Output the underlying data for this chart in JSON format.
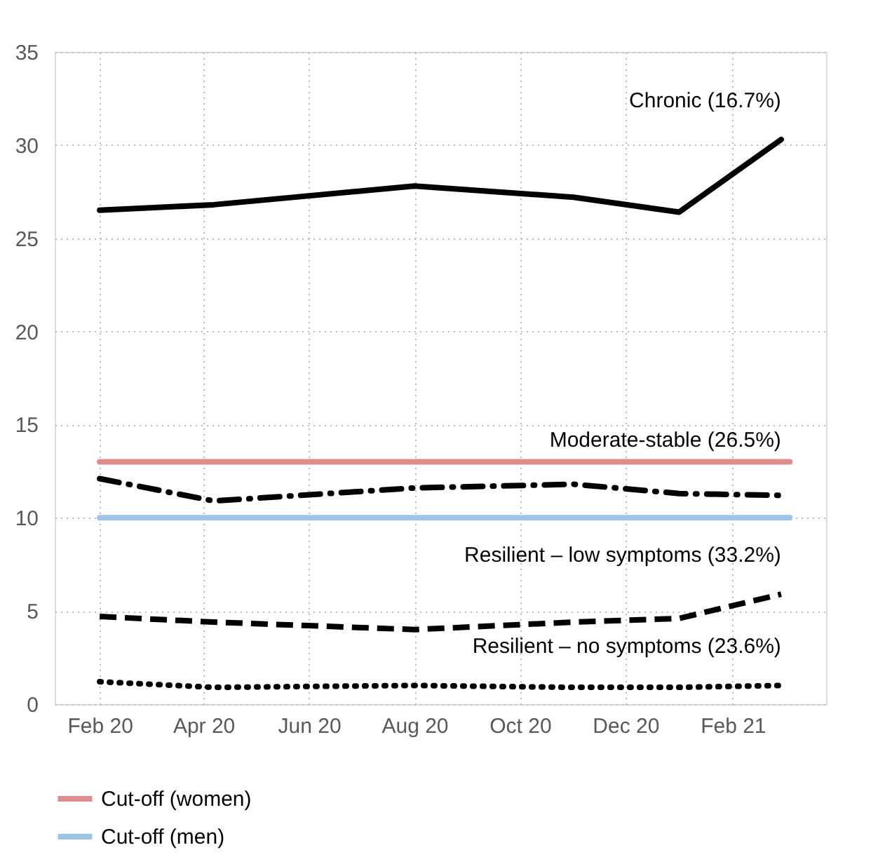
{
  "chart_data": {
    "type": "line",
    "xlim": [
      "2020-01-20",
      "2021-04-10"
    ],
    "xticks": [
      {
        "value": "2020-02-15",
        "label": "Feb 20"
      },
      {
        "value": "2020-04-15",
        "label": "Apr 20"
      },
      {
        "value": "2020-06-15",
        "label": "Jun 20"
      },
      {
        "value": "2020-08-15",
        "label": "Aug 20"
      },
      {
        "value": "2020-10-15",
        "label": "Oct 20"
      },
      {
        "value": "2020-12-15",
        "label": "Dec 20"
      },
      {
        "value": "2021-02-15",
        "label": "Feb 21"
      }
    ],
    "ylim": [
      0,
      35
    ],
    "yticks": [
      0,
      5,
      10,
      15,
      20,
      25,
      30,
      35
    ],
    "grid": true,
    "legend": "bottom left",
    "x": [
      "2020-02-15",
      "2020-04-21",
      "2020-08-15",
      "2020-11-15",
      "2021-01-15",
      "2021-03-15"
    ],
    "series": [
      {
        "color": "#000000",
        "line_style": "solid",
        "values": [
          26.5,
          26.8,
          27.8,
          27.2,
          26.4,
          30.3
        ]
      },
      {
        "color": "#000000",
        "line_style": "dashdot",
        "values": [
          12.1,
          10.9,
          11.6,
          11.8,
          11.3,
          11.2
        ]
      },
      {
        "color": "#000000",
        "line_style": "dashed",
        "values": [
          4.7,
          4.4,
          4.0,
          4.4,
          4.6,
          5.9
        ]
      },
      {
        "color": "#000000",
        "line_style": "dotted",
        "values": [
          1.2,
          0.9,
          1.0,
          0.9,
          0.9,
          1.0
        ]
      },
      {
        "name": "Cut-off (women)",
        "color": "#e08c8c",
        "line_style": "solid",
        "x": [
          "2020-02-15",
          "2021-03-20"
        ],
        "values": [
          13,
          13
        ]
      },
      {
        "name": "Cut-off (men)",
        "color": "#9dc3e6",
        "line_style": "solid",
        "x": [
          "2020-02-15",
          "2021-03-20"
        ],
        "values": [
          10,
          10
        ]
      }
    ],
    "annotations": [
      "Chronic (16.7%)",
      "Moderate-stable (26.5%)",
      "Resilient – low symptoms (33.2%)",
      "Resilient – no symptoms (23.6%)"
    ]
  }
}
